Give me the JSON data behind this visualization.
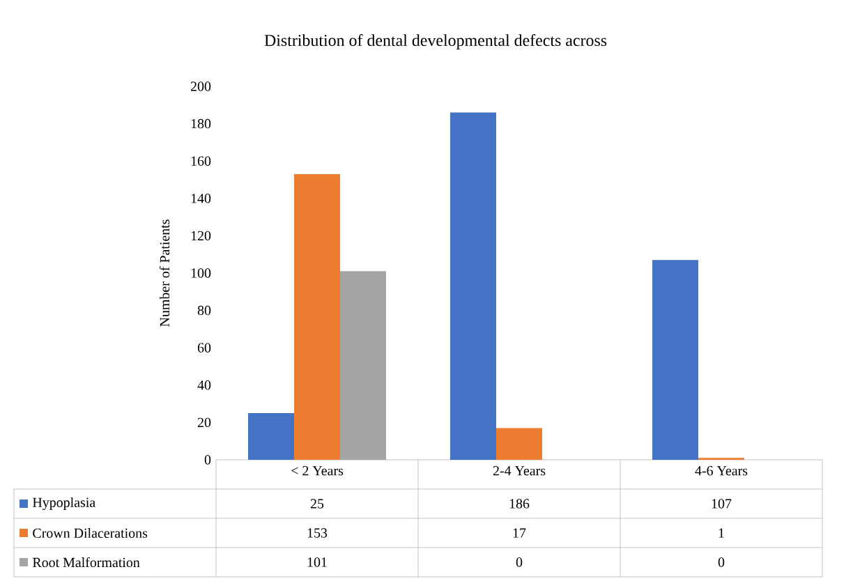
{
  "chart_data": {
    "type": "bar",
    "title": "Distribution of dental developmental defects across",
    "ylabel": "Number of Patients",
    "categories": [
      "< 2 Years",
      "2-4 Years",
      "4-6 Years"
    ],
    "series": [
      {
        "name": "Hypoplasia",
        "color": "#4472c4",
        "values": [
          25,
          186,
          107
        ]
      },
      {
        "name": "Crown Dilacerations",
        "color": "#ed7d31",
        "values": [
          153,
          17,
          1
        ]
      },
      {
        "name": "Root Malformation",
        "color": "#a5a5a5",
        "values": [
          101,
          0,
          0
        ]
      }
    ],
    "ylim": [
      0,
      200
    ],
    "yticks": [
      0,
      20,
      40,
      60,
      80,
      100,
      120,
      140,
      160,
      180,
      200
    ],
    "grid": false,
    "legend": "bottom",
    "data_labels": true
  }
}
